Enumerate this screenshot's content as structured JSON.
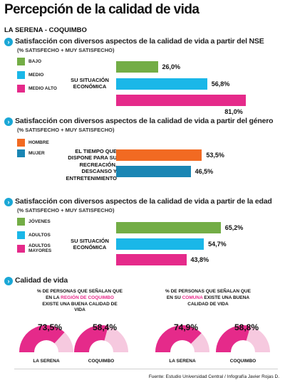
{
  "header": {
    "title": "Percepción de la calidad de vida",
    "subtitle": "LA SERENA - COQUIMBO"
  },
  "colors": {
    "green": "#73ad46",
    "cyan": "#1ab7e8",
    "magenta": "#e52a8a",
    "orange": "#f26a22",
    "teal": "#1a86b4",
    "pink_light": "#f6c9df"
  },
  "chart_data": [
    {
      "type": "bar",
      "title": "Satisfacción con diversos aspectos de la calidad de vida a partir del NSE",
      "subtitle": "(% SATISFECHO + MUY SATISFECHO)",
      "category": "SU SITUACIÓN ECONÓMICA",
      "series": [
        {
          "name": "BAJO",
          "values": [
            26.0
          ],
          "label": "26,0%"
        },
        {
          "name": "MEDIO",
          "values": [
            56.8
          ],
          "label": "56,8%"
        },
        {
          "name": "MEDIO ALTO",
          "values": [
            81.0
          ],
          "label": "81,0%"
        }
      ]
    },
    {
      "type": "bar",
      "title": "Satisfacción con diversos aspectos de la calidad de vida a partir del género",
      "subtitle": "(% SATISFECHO + MUY SATISFECHO)",
      "category": "EL TIEMPO QUE DISPONE PARA SU RECREACIÓN, DESCANSO Y ENTRETENIMIENTO",
      "series": [
        {
          "name": "HOMBRE",
          "values": [
            53.5
          ],
          "label": "53,5%"
        },
        {
          "name": "MUJER",
          "values": [
            46.5
          ],
          "label": "46,5%"
        }
      ]
    },
    {
      "type": "bar",
      "title": "Satisfacción con diversos aspectos de la calidad de vida a partir de la edad",
      "subtitle": "(% SATISFECHO + MUY SATISFECHO)",
      "category": "SU SITUACIÓN ECONÓMICA",
      "series": [
        {
          "name": "JÓVENES",
          "values": [
            65.2
          ],
          "label": "65,2%"
        },
        {
          "name": "ADULTOS",
          "values": [
            54.7
          ],
          "label": "54,7%"
        },
        {
          "name": "ADULTOS MAYORES",
          "values": [
            43.8
          ],
          "label": "43,8%"
        }
      ]
    },
    {
      "type": "pie",
      "title": "Calidad de vida",
      "captions": [
        {
          "pre": "% DE PERSONAS QUE SEÑALAN QUE EN LA ",
          "highlight": "REGIÓN DE COQUIMBO",
          "post": " EXISTE UNA BUENA CALIDAD DE VIDA"
        },
        {
          "pre": "% DE PERSONAS QUE SEÑALAN QUE EN SU ",
          "highlight": "COMUNA",
          "post": " EXISTE UNA BUENA CALIDAD DE VIDA"
        }
      ],
      "gauges": [
        {
          "name": "LA SERENA",
          "value": 73.5,
          "label": "73,5%",
          "group": 0
        },
        {
          "name": "COQUIMBO",
          "value": 58.4,
          "label": "58,4%",
          "group": 0
        },
        {
          "name": "LA SERENA",
          "value": 74.9,
          "label": "74,9%",
          "group": 1
        },
        {
          "name": "COQUIMBO",
          "value": 58.8,
          "label": "58,8%",
          "group": 1
        }
      ]
    }
  ],
  "footer": {
    "source": "Fuente: Estudio Universidad Central / Infografía Javier Rojas D."
  }
}
